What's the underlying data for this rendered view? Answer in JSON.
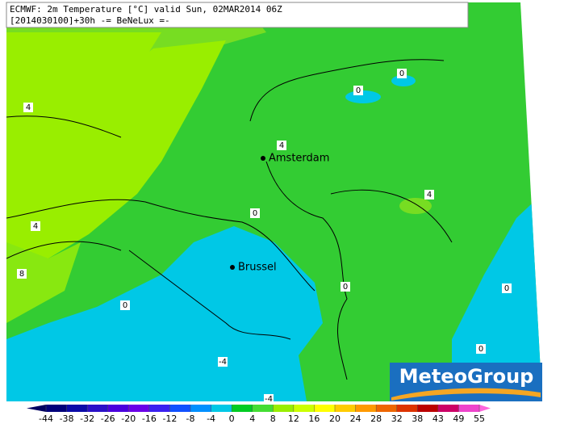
{
  "header": {
    "line1": "ECMWF: 2m Temperature [°C] valid Sun, 02MAR2014 06Z",
    "line2": "[2014030100]+30h -= BeNeLux =-"
  },
  "cities": [
    {
      "name": "Amsterdam"
    },
    {
      "name": "Brussel"
    }
  ],
  "contour_labels": [
    "4",
    "0",
    "0",
    "4",
    "4",
    "0",
    "4",
    "8",
    "0",
    "0",
    "0",
    "-4",
    "0",
    "-4"
  ],
  "logo": "MeteoGroup",
  "colorbar": {
    "ticks": [
      -44,
      -38,
      -32,
      -26,
      -20,
      -16,
      -12,
      -8,
      -4,
      0,
      4,
      8,
      12,
      16,
      20,
      24,
      28,
      32,
      38,
      43,
      49,
      55
    ],
    "colors": [
      "#00007a",
      "#0a0aa8",
      "#2a10c8",
      "#4a00dd",
      "#6a00e8",
      "#3a20f0",
      "#1050ff",
      "#0090ff",
      "#00c8e6",
      "#00cc22",
      "#44dd33",
      "#99ee00",
      "#ccff00",
      "#ffff00",
      "#ffcc00",
      "#ff9900",
      "#ee6600",
      "#dd3300",
      "#bb0000",
      "#cc0066",
      "#ee44cc"
    ],
    "low_color": "#000060",
    "high_color": "#ff66dd"
  }
}
